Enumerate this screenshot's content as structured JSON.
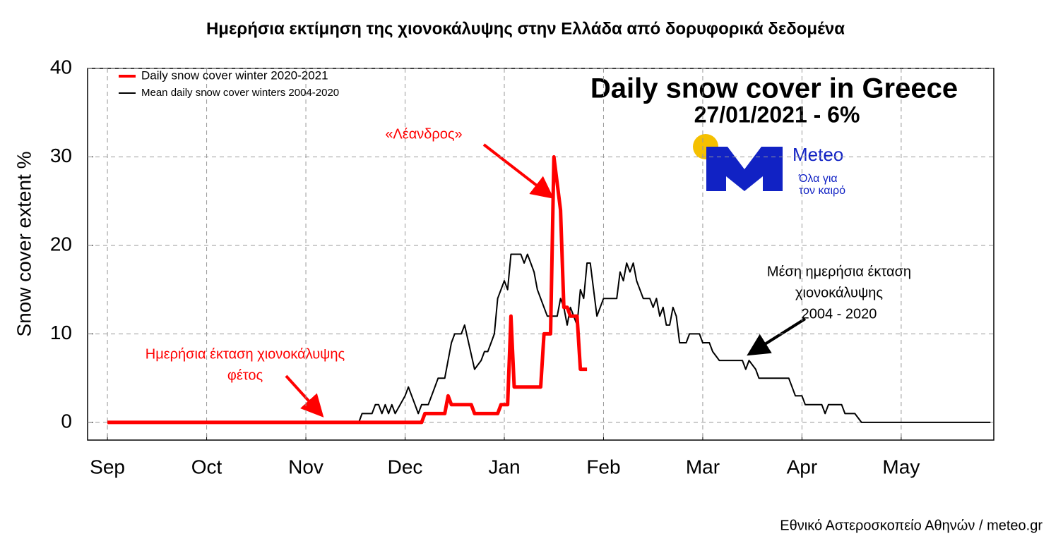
{
  "header": {
    "title": "Ημερήσια εκτίμηση της χιονοκάλυψης στην Ελλάδα από δορυφορικά δεδομένα"
  },
  "chart_data": {
    "type": "line",
    "title": "Daily snow cover in Greece",
    "subtitle": "27/01/2021 - 6%",
    "ylabel": "Snow cover extent %",
    "xlim": [
      -6,
      268
    ],
    "xticks": [
      {
        "value": 0,
        "label": "Sep"
      },
      {
        "value": 30,
        "label": "Oct"
      },
      {
        "value": 60,
        "label": "Nov"
      },
      {
        "value": 90,
        "label": "Dec"
      },
      {
        "value": 120,
        "label": "Jan"
      },
      {
        "value": 150,
        "label": "Feb"
      },
      {
        "value": 180,
        "label": "Mar"
      },
      {
        "value": 210,
        "label": "Apr"
      },
      {
        "value": 240,
        "label": "May"
      }
    ],
    "ylim": [
      -2,
      40
    ],
    "yticks": [
      0,
      10,
      20,
      30,
      40
    ],
    "grid": true,
    "legend": "upper left",
    "series": [
      {
        "name": "Daily snow cover winter 2020-2021",
        "color": "#ff0000",
        "x": [
          0,
          95,
          96,
          102,
          103,
          104,
          110,
          111,
          118,
          119,
          121,
          122,
          123,
          131,
          132,
          134,
          135,
          136,
          137,
          138,
          139,
          140,
          142,
          143,
          145
        ],
        "values": [
          0,
          0,
          1,
          1,
          3,
          2,
          2,
          1,
          1,
          2,
          2,
          12,
          4,
          4,
          10,
          10,
          30,
          27,
          24,
          13,
          13,
          12,
          12,
          6,
          6
        ]
      },
      {
        "name": "Mean daily snow cover winters 2004-2020",
        "color": "#000000",
        "x": [
          0,
          76,
          77,
          80,
          81,
          82,
          83,
          84,
          85,
          86,
          87,
          90,
          91,
          92,
          93,
          94,
          95,
          97,
          98,
          99,
          100,
          102,
          103,
          104,
          105,
          107,
          108,
          111,
          113,
          114,
          115,
          116,
          117,
          118,
          120,
          121,
          122,
          125,
          126,
          127,
          129,
          130,
          132,
          133,
          136,
          137,
          138,
          139,
          140,
          142,
          143,
          144,
          145,
          146,
          147,
          148,
          150,
          154,
          155,
          156,
          157,
          158,
          159,
          160,
          162,
          164,
          165,
          166,
          167,
          168,
          169,
          170,
          171,
          172,
          173,
          175,
          176,
          179,
          180,
          182,
          183,
          185,
          192,
          193,
          194,
          196,
          197,
          206,
          207,
          208,
          210,
          211,
          216,
          217,
          218,
          222,
          223,
          226,
          228,
          267
        ],
        "values": [
          0,
          0,
          1,
          1,
          2,
          2,
          1,
          2,
          1,
          2,
          1,
          3,
          4,
          3,
          2,
          1,
          2,
          2,
          3,
          4,
          5,
          5,
          7,
          9,
          10,
          10,
          11,
          6,
          7,
          8,
          8,
          9,
          10,
          14,
          16,
          15,
          19,
          19,
          18,
          19,
          17,
          15,
          13,
          12,
          12,
          14,
          13,
          11,
          13,
          11,
          15,
          14,
          18,
          18,
          15,
          12,
          14,
          14,
          17,
          16,
          18,
          17,
          18,
          16,
          14,
          14,
          13,
          14,
          12,
          13,
          11,
          11,
          13,
          12,
          9,
          9,
          10,
          10,
          9,
          9,
          8,
          7,
          7,
          6,
          7,
          6,
          5,
          5,
          4,
          3,
          3,
          2,
          2,
          1,
          2,
          2,
          1,
          1,
          0,
          0
        ]
      }
    ],
    "annotations": [
      {
        "lines": [
          "«Λέανδρος»"
        ],
        "color": "#ff0000"
      },
      {
        "lines": [
          "Ημερήσια έκταση χιονοκάλυψης",
          "φέτος"
        ],
        "color": "#ff0000"
      },
      {
        "lines": [
          "Μέση ημερήσια έκταση",
          "χιονοκάλυψης",
          "2004 - 2020"
        ],
        "color": "#000000"
      }
    ]
  },
  "logo": {
    "name": "Meteo",
    "tagline": [
      "Όλα για",
      "τον καιρό"
    ]
  },
  "footer": {
    "source": "Εθνικό Αστεροσκοπείο Αθηνών / meteo.gr"
  }
}
